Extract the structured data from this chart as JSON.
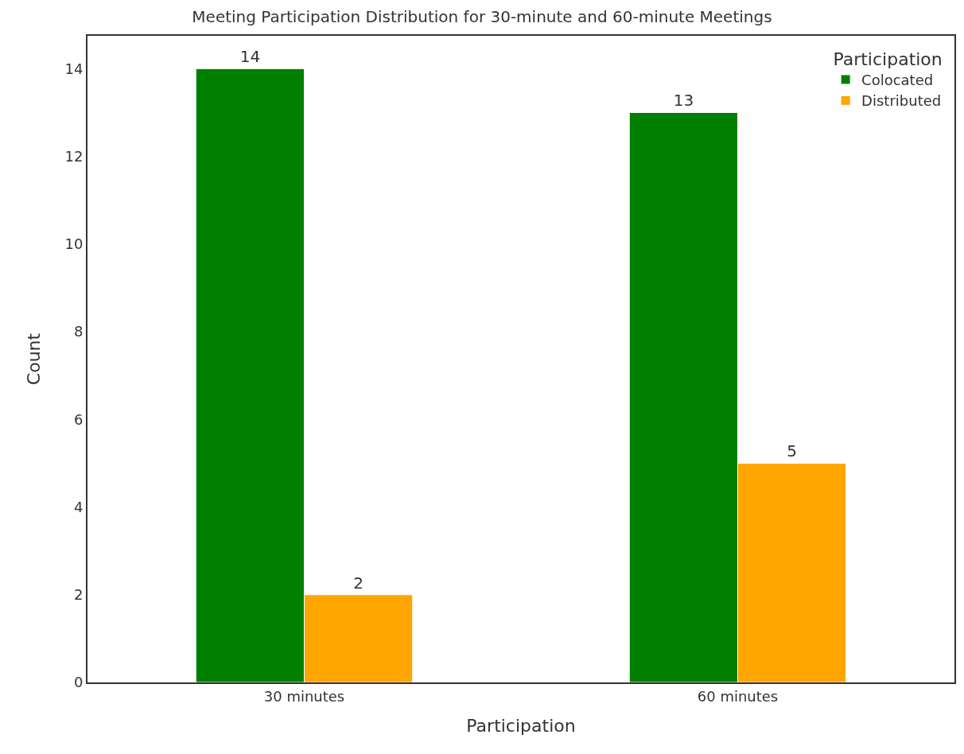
{
  "chart_data": {
    "type": "bar",
    "title": "Meeting Participation Distribution for 30-minute and 60-minute Meetings",
    "xlabel": "Participation",
    "ylabel": "Count",
    "legend_title": "Participation",
    "categories": [
      "30 minutes",
      "60 minutes"
    ],
    "series": [
      {
        "name": "Colocated",
        "color": "#008000",
        "values": [
          14,
          13
        ]
      },
      {
        "name": "Distributed",
        "color": "#ffa500",
        "values": [
          2,
          5
        ]
      }
    ],
    "ylim": [
      0,
      14.75
    ],
    "yticks": [
      0,
      2,
      4,
      6,
      8,
      10,
      12,
      14
    ],
    "legend": "top right",
    "data_labels": true
  }
}
